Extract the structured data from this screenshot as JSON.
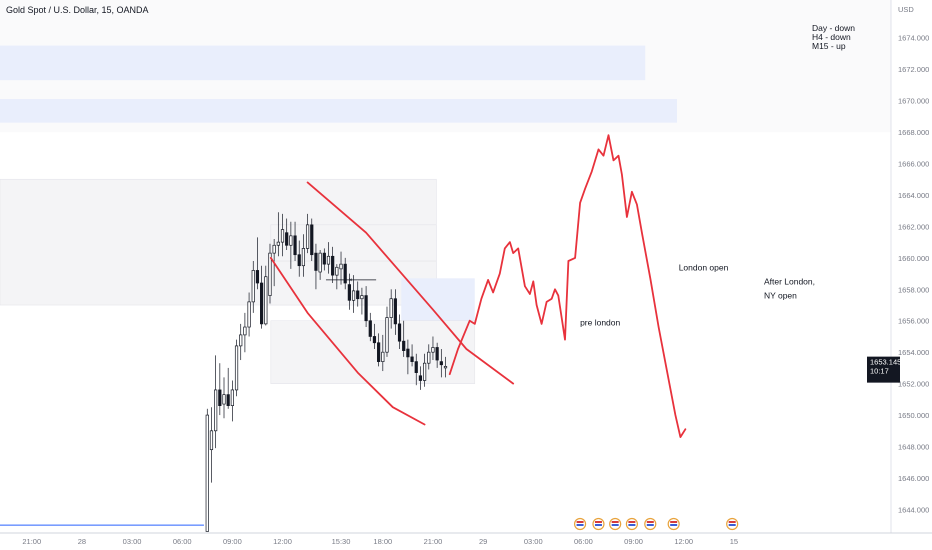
{
  "header": {
    "symbol_title": "Gold Spot / U.S. Dollar, 15, OANDA",
    "currency": "USD"
  },
  "notes": [
    "Day - down",
    "H4 - down",
    "M15 - up"
  ],
  "price_label": {
    "price": "1653.145",
    "countdown": "10:17",
    "color": "#ffffff"
  },
  "annotations": [
    {
      "text": "pre london",
      "x": 32.8,
      "y": 1655.7
    },
    {
      "text": "London open",
      "x": 38.7,
      "y": 1659.2
    },
    {
      "text": "After London,",
      "x": 43.8,
      "y": 1658.3
    },
    {
      "text": "NY open",
      "x": 43.8,
      "y": 1657.4
    }
  ],
  "colors": {
    "drawing": "#e8323c",
    "zone_blue": "#e9eefc",
    "zone_grey": "#f4f4f6",
    "candle_body": "#131722",
    "timer_bg": "#131722",
    "baseline": "#2962ff"
  },
  "chart_data": {
    "type": "candlestick",
    "x_unit": "hours since 21:00 on the 27th",
    "xlim": [
      -1.9,
      51.4
    ],
    "ylim": [
      1642.5,
      1676.4
    ],
    "y_ticks": [
      "1644.000",
      "1646.000",
      "1648.000",
      "1650.000",
      "1652.000",
      "1654.000",
      "1656.000",
      "1658.000",
      "1660.000",
      "1662.000",
      "1664.000",
      "1666.000",
      "1668.000",
      "1670.000",
      "1672.000",
      "1674.000"
    ],
    "x_ticks": [
      {
        "t": 0,
        "label": "21:00"
      },
      {
        "t": 3,
        "label": "28"
      },
      {
        "t": 6,
        "label": "03:00"
      },
      {
        "t": 9,
        "label": "06:00"
      },
      {
        "t": 12,
        "label": "09:00"
      },
      {
        "t": 15,
        "label": "12:00"
      },
      {
        "t": 18.5,
        "label": "15:30"
      },
      {
        "t": 21,
        "label": "18:00"
      },
      {
        "t": 24,
        "label": "21:00"
      },
      {
        "t": 27,
        "label": "29"
      },
      {
        "t": 30,
        "label": "03:00"
      },
      {
        "t": 33,
        "label": "06:00"
      },
      {
        "t": 36,
        "label": "09:00"
      },
      {
        "t": 39,
        "label": "12:00"
      },
      {
        "t": 42,
        "label": "15"
      }
    ],
    "zones": [
      {
        "x0": -1.9,
        "x1": 36.7,
        "y0": 1673.5,
        "y1": 1671.3,
        "color": "blue"
      },
      {
        "x0": -1.9,
        "x1": 38.6,
        "y0": 1670.1,
        "y1": 1668.6,
        "color": "blue"
      },
      {
        "x0": -1.9,
        "x1": 24.2,
        "y0": 1665.0,
        "y1": 1657.0,
        "color": "grey"
      },
      {
        "x0": 14.3,
        "x1": 24.2,
        "y0": 1659.8,
        "y1": 1657.0,
        "color": "grey"
      },
      {
        "x0": 14.3,
        "x1": 24.2,
        "y0": 1662.1,
        "y1": 1659.8,
        "color": "grey"
      },
      {
        "x0": 22.1,
        "x1": 26.5,
        "y0": 1658.7,
        "y1": 1656.0,
        "color": "blue"
      },
      {
        "x0": 14.3,
        "x1": 26.5,
        "y0": 1656.0,
        "y1": 1652.0,
        "color": "grey"
      }
    ],
    "candles": [
      {
        "t": 10.5,
        "o": 1642.6,
        "h": 1650.4,
        "l": 1642.6,
        "c": 1650.0
      },
      {
        "t": 10.75,
        "o": 1647.8,
        "h": 1650.5,
        "l": 1645.7,
        "c": 1649.0
      },
      {
        "t": 11.0,
        "o": 1649.0,
        "h": 1653.8,
        "l": 1647.9,
        "c": 1651.6
      },
      {
        "t": 11.25,
        "o": 1651.6,
        "h": 1653.3,
        "l": 1650.0,
        "c": 1650.6
      },
      {
        "t": 11.5,
        "o": 1650.7,
        "h": 1652.4,
        "l": 1649.8,
        "c": 1651.3
      },
      {
        "t": 11.75,
        "o": 1651.3,
        "h": 1653.0,
        "l": 1650.4,
        "c": 1650.6
      },
      {
        "t": 12.0,
        "o": 1650.6,
        "h": 1652.2,
        "l": 1649.6,
        "c": 1651.6
      },
      {
        "t": 12.25,
        "o": 1651.6,
        "h": 1654.8,
        "l": 1651.2,
        "c": 1654.4
      },
      {
        "t": 12.5,
        "o": 1654.4,
        "h": 1655.8,
        "l": 1653.5,
        "c": 1655.1
      },
      {
        "t": 12.75,
        "o": 1655.1,
        "h": 1656.5,
        "l": 1654.0,
        "c": 1655.6
      },
      {
        "t": 13.0,
        "o": 1655.6,
        "h": 1657.8,
        "l": 1655.0,
        "c": 1657.2
      },
      {
        "t": 13.25,
        "o": 1657.2,
        "h": 1659.8,
        "l": 1656.5,
        "c": 1659.2
      },
      {
        "t": 13.5,
        "o": 1659.2,
        "h": 1661.3,
        "l": 1658.0,
        "c": 1658.4
      },
      {
        "t": 13.75,
        "o": 1658.4,
        "h": 1659.5,
        "l": 1655.5,
        "c": 1655.8
      },
      {
        "t": 14.0,
        "o": 1655.8,
        "h": 1659.5,
        "l": 1655.7,
        "c": 1658.8
      },
      {
        "t": 14.25,
        "o": 1657.6,
        "h": 1660.9,
        "l": 1657.1,
        "c": 1660.3
      },
      {
        "t": 14.5,
        "o": 1660.3,
        "h": 1661.2,
        "l": 1658.2,
        "c": 1660.8
      },
      {
        "t": 14.75,
        "o": 1660.8,
        "h": 1662.9,
        "l": 1660.1,
        "c": 1661.0
      },
      {
        "t": 15.0,
        "o": 1661.0,
        "h": 1662.8,
        "l": 1660.1,
        "c": 1661.8
      },
      {
        "t": 15.25,
        "o": 1661.6,
        "h": 1662.5,
        "l": 1660.5,
        "c": 1660.8
      },
      {
        "t": 15.5,
        "o": 1660.8,
        "h": 1662.3,
        "l": 1659.3,
        "c": 1661.4
      },
      {
        "t": 15.75,
        "o": 1661.4,
        "h": 1662.3,
        "l": 1659.8,
        "c": 1660.2
      },
      {
        "t": 16.0,
        "o": 1660.2,
        "h": 1661.1,
        "l": 1658.8,
        "c": 1659.5
      },
      {
        "t": 16.25,
        "o": 1659.5,
        "h": 1661.5,
        "l": 1658.8,
        "c": 1660.6
      },
      {
        "t": 16.5,
        "o": 1660.6,
        "h": 1662.8,
        "l": 1660.3,
        "c": 1662.1
      },
      {
        "t": 16.75,
        "o": 1662.1,
        "h": 1662.5,
        "l": 1659.8,
        "c": 1660.2
      },
      {
        "t": 17.0,
        "o": 1660.3,
        "h": 1660.9,
        "l": 1658.0,
        "c": 1659.2
      },
      {
        "t": 17.25,
        "o": 1659.1,
        "h": 1660.5,
        "l": 1658.6,
        "c": 1660.3
      },
      {
        "t": 17.5,
        "o": 1660.3,
        "h": 1660.6,
        "l": 1659.2,
        "c": 1659.6
      },
      {
        "t": 17.75,
        "o": 1659.6,
        "h": 1661.0,
        "l": 1659.0,
        "c": 1660.1
      },
      {
        "t": 18.0,
        "o": 1660.1,
        "h": 1660.7,
        "l": 1658.4,
        "c": 1658.9
      },
      {
        "t": 18.25,
        "o": 1658.9,
        "h": 1659.6,
        "l": 1658.0,
        "c": 1659.4
      },
      {
        "t": 18.5,
        "o": 1659.3,
        "h": 1660.4,
        "l": 1658.3,
        "c": 1659.6
      },
      {
        "t": 18.75,
        "o": 1659.6,
        "h": 1660.0,
        "l": 1658.0,
        "c": 1658.4
      },
      {
        "t": 19.0,
        "o": 1658.3,
        "h": 1659.0,
        "l": 1656.7,
        "c": 1657.3
      },
      {
        "t": 19.25,
        "o": 1657.3,
        "h": 1658.9,
        "l": 1656.5,
        "c": 1657.9
      },
      {
        "t": 19.5,
        "o": 1657.9,
        "h": 1658.5,
        "l": 1656.9,
        "c": 1657.4
      },
      {
        "t": 19.75,
        "o": 1657.4,
        "h": 1658.1,
        "l": 1656.4,
        "c": 1657.6
      },
      {
        "t": 20.0,
        "o": 1657.6,
        "h": 1658.2,
        "l": 1655.6,
        "c": 1656.0
      },
      {
        "t": 20.25,
        "o": 1656.0,
        "h": 1656.5,
        "l": 1654.7,
        "c": 1655.0
      },
      {
        "t": 20.5,
        "o": 1655.0,
        "h": 1655.8,
        "l": 1654.2,
        "c": 1654.6
      },
      {
        "t": 20.75,
        "o": 1654.6,
        "h": 1655.2,
        "l": 1653.1,
        "c": 1653.4
      },
      {
        "t": 21.0,
        "o": 1653.4,
        "h": 1655.1,
        "l": 1652.8,
        "c": 1654.0
      },
      {
        "t": 21.25,
        "o": 1654.0,
        "h": 1656.9,
        "l": 1653.7,
        "c": 1656.2
      },
      {
        "t": 21.5,
        "o": 1656.2,
        "h": 1658.0,
        "l": 1655.5,
        "c": 1657.4
      },
      {
        "t": 21.75,
        "o": 1657.4,
        "h": 1658.0,
        "l": 1655.1,
        "c": 1655.8
      },
      {
        "t": 22.0,
        "o": 1655.8,
        "h": 1656.4,
        "l": 1654.2,
        "c": 1654.7
      },
      {
        "t": 22.25,
        "o": 1654.7,
        "h": 1656.0,
        "l": 1653.7,
        "c": 1654.1
      },
      {
        "t": 22.5,
        "o": 1654.2,
        "h": 1654.8,
        "l": 1652.6,
        "c": 1653.7
      },
      {
        "t": 22.75,
        "o": 1653.7,
        "h": 1654.5,
        "l": 1653.1,
        "c": 1653.4
      },
      {
        "t": 23.0,
        "o": 1653.4,
        "h": 1653.9,
        "l": 1651.9,
        "c": 1652.7
      },
      {
        "t": 23.25,
        "o": 1652.5,
        "h": 1653.1,
        "l": 1651.6,
        "c": 1652.2
      },
      {
        "t": 23.5,
        "o": 1652.2,
        "h": 1653.9,
        "l": 1651.8,
        "c": 1653.3
      },
      {
        "t": 23.75,
        "o": 1653.3,
        "h": 1654.5,
        "l": 1652.9,
        "c": 1654.0
      },
      {
        "t": 24.0,
        "o": 1654.0,
        "h": 1655.0,
        "l": 1653.5,
        "c": 1654.3
      },
      {
        "t": 24.25,
        "o": 1654.3,
        "h": 1654.6,
        "l": 1653.0,
        "c": 1653.5
      },
      {
        "t": 24.5,
        "o": 1653.4,
        "h": 1654.2,
        "l": 1652.4,
        "c": 1653.2
      },
      {
        "t": 24.75,
        "o": 1653.0,
        "h": 1653.7,
        "l": 1652.4,
        "c": 1653.1
      }
    ],
    "drawings": [
      {
        "name": "upper-trendline",
        "points": [
          [
            16.5,
            1664.8
          ],
          [
            20.0,
            1661.6
          ],
          [
            24.0,
            1656.7
          ],
          [
            26.0,
            1654.2
          ],
          [
            28.8,
            1652.0
          ]
        ]
      },
      {
        "name": "lower-trendline",
        "points": [
          [
            14.3,
            1660.0
          ],
          [
            16.5,
            1656.5
          ],
          [
            19.5,
            1652.7
          ],
          [
            21.6,
            1650.5
          ],
          [
            23.5,
            1649.4
          ]
        ]
      },
      {
        "name": "projection-path",
        "points": [
          [
            25.0,
            1652.6
          ],
          [
            25.5,
            1654.2
          ],
          [
            26.2,
            1656.0
          ],
          [
            26.5,
            1655.8
          ],
          [
            26.9,
            1657.4
          ],
          [
            27.3,
            1658.6
          ],
          [
            27.6,
            1657.8
          ],
          [
            28.0,
            1659.0
          ],
          [
            28.3,
            1660.6
          ],
          [
            28.6,
            1661.0
          ],
          [
            28.8,
            1660.3
          ],
          [
            29.1,
            1660.6
          ],
          [
            29.5,
            1658.2
          ],
          [
            29.8,
            1657.7
          ],
          [
            30.0,
            1658.5
          ],
          [
            30.2,
            1657.0
          ],
          [
            30.5,
            1655.8
          ],
          [
            30.8,
            1657.2
          ],
          [
            31.1,
            1657.4
          ],
          [
            31.3,
            1658.0
          ],
          [
            31.5,
            1657.6
          ],
          [
            31.9,
            1654.8
          ],
          [
            32.1,
            1659.8
          ],
          [
            32.5,
            1660.0
          ],
          [
            32.8,
            1663.5
          ],
          [
            33.1,
            1664.4
          ],
          [
            33.5,
            1665.5
          ],
          [
            33.9,
            1666.9
          ],
          [
            34.2,
            1666.5
          ],
          [
            34.5,
            1667.8
          ],
          [
            34.8,
            1666.2
          ],
          [
            35.1,
            1666.5
          ],
          [
            35.3,
            1665.3
          ],
          [
            35.6,
            1662.6
          ],
          [
            35.9,
            1664.2
          ],
          [
            36.2,
            1663.4
          ],
          [
            36.5,
            1661.6
          ],
          [
            37.0,
            1658.7
          ],
          [
            37.5,
            1655.6
          ],
          [
            38.0,
            1652.8
          ],
          [
            38.5,
            1650.0
          ],
          [
            38.8,
            1648.6
          ],
          [
            39.1,
            1649.1
          ]
        ]
      }
    ],
    "level_marker": {
      "x0": 17.6,
      "x1": 20.6,
      "y": 1658.6
    }
  }
}
